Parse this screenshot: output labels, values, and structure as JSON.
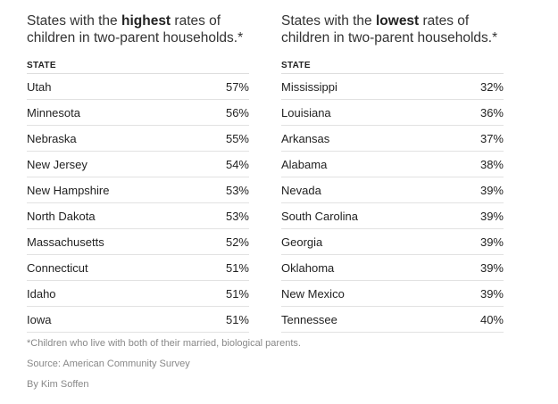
{
  "chart_data": [
    {
      "type": "table",
      "title_prefix": "States with the ",
      "title_emphasis": "highest",
      "title_suffix": " rates of children in two-parent households.*",
      "column_header": "STATE",
      "rows": [
        {
          "state": "Utah",
          "value": "57%"
        },
        {
          "state": "Minnesota",
          "value": "56%"
        },
        {
          "state": "Nebraska",
          "value": "55%"
        },
        {
          "state": "New Jersey",
          "value": "54%"
        },
        {
          "state": "New Hampshire",
          "value": "53%"
        },
        {
          "state": "North Dakota",
          "value": "53%"
        },
        {
          "state": "Massachusetts",
          "value": "52%"
        },
        {
          "state": "Connecticut",
          "value": "51%"
        },
        {
          "state": "Idaho",
          "value": "51%"
        },
        {
          "state": "Iowa",
          "value": "51%"
        }
      ]
    },
    {
      "type": "table",
      "title_prefix": "States with the ",
      "title_emphasis": "lowest",
      "title_suffix": " rates of children in two-parent households.*",
      "column_header": "STATE",
      "rows": [
        {
          "state": "Mississippi",
          "value": "32%"
        },
        {
          "state": "Louisiana",
          "value": "36%"
        },
        {
          "state": "Arkansas",
          "value": "37%"
        },
        {
          "state": "Alabama",
          "value": "38%"
        },
        {
          "state": "Nevada",
          "value": "39%"
        },
        {
          "state": "South Carolina",
          "value": "39%"
        },
        {
          "state": "Georgia",
          "value": "39%"
        },
        {
          "state": "Oklahoma",
          "value": "39%"
        },
        {
          "state": "New Mexico",
          "value": "39%"
        },
        {
          "state": "Tennessee",
          "value": "40%"
        }
      ]
    }
  ],
  "footer": {
    "note": "*Children who live with both of their married, biological parents.",
    "source": "Source: American Community Survey",
    "byline": "By Kim Soffen"
  }
}
